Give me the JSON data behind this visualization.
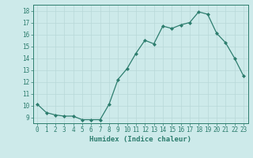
{
  "x": [
    0,
    1,
    2,
    3,
    4,
    5,
    6,
    7,
    8,
    9,
    10,
    11,
    12,
    13,
    14,
    15,
    16,
    17,
    18,
    19,
    20,
    21,
    22,
    23
  ],
  "y": [
    10.1,
    9.4,
    9.2,
    9.1,
    9.1,
    8.8,
    8.8,
    8.8,
    10.1,
    12.2,
    13.1,
    14.4,
    15.5,
    15.2,
    16.7,
    16.5,
    16.8,
    17.0,
    17.9,
    17.7,
    16.1,
    15.3,
    14.0,
    12.5
  ],
  "line_color": "#2d7d6e",
  "marker": "D",
  "marker_size": 2.0,
  "bg_color": "#cdeaea",
  "grid_color": "#b8d8d8",
  "xlabel": "Humidex (Indice chaleur)",
  "xlim": [
    -0.5,
    23.5
  ],
  "ylim": [
    8.5,
    18.5
  ],
  "yticks": [
    9,
    10,
    11,
    12,
    13,
    14,
    15,
    16,
    17,
    18
  ],
  "xticks": [
    0,
    1,
    2,
    3,
    4,
    5,
    6,
    7,
    8,
    9,
    10,
    11,
    12,
    13,
    14,
    15,
    16,
    17,
    18,
    19,
    20,
    21,
    22,
    23
  ],
  "tick_color": "#2d7d6e",
  "axis_color": "#2d7d6e",
  "label_fontsize": 6.5,
  "tick_fontsize": 5.5
}
